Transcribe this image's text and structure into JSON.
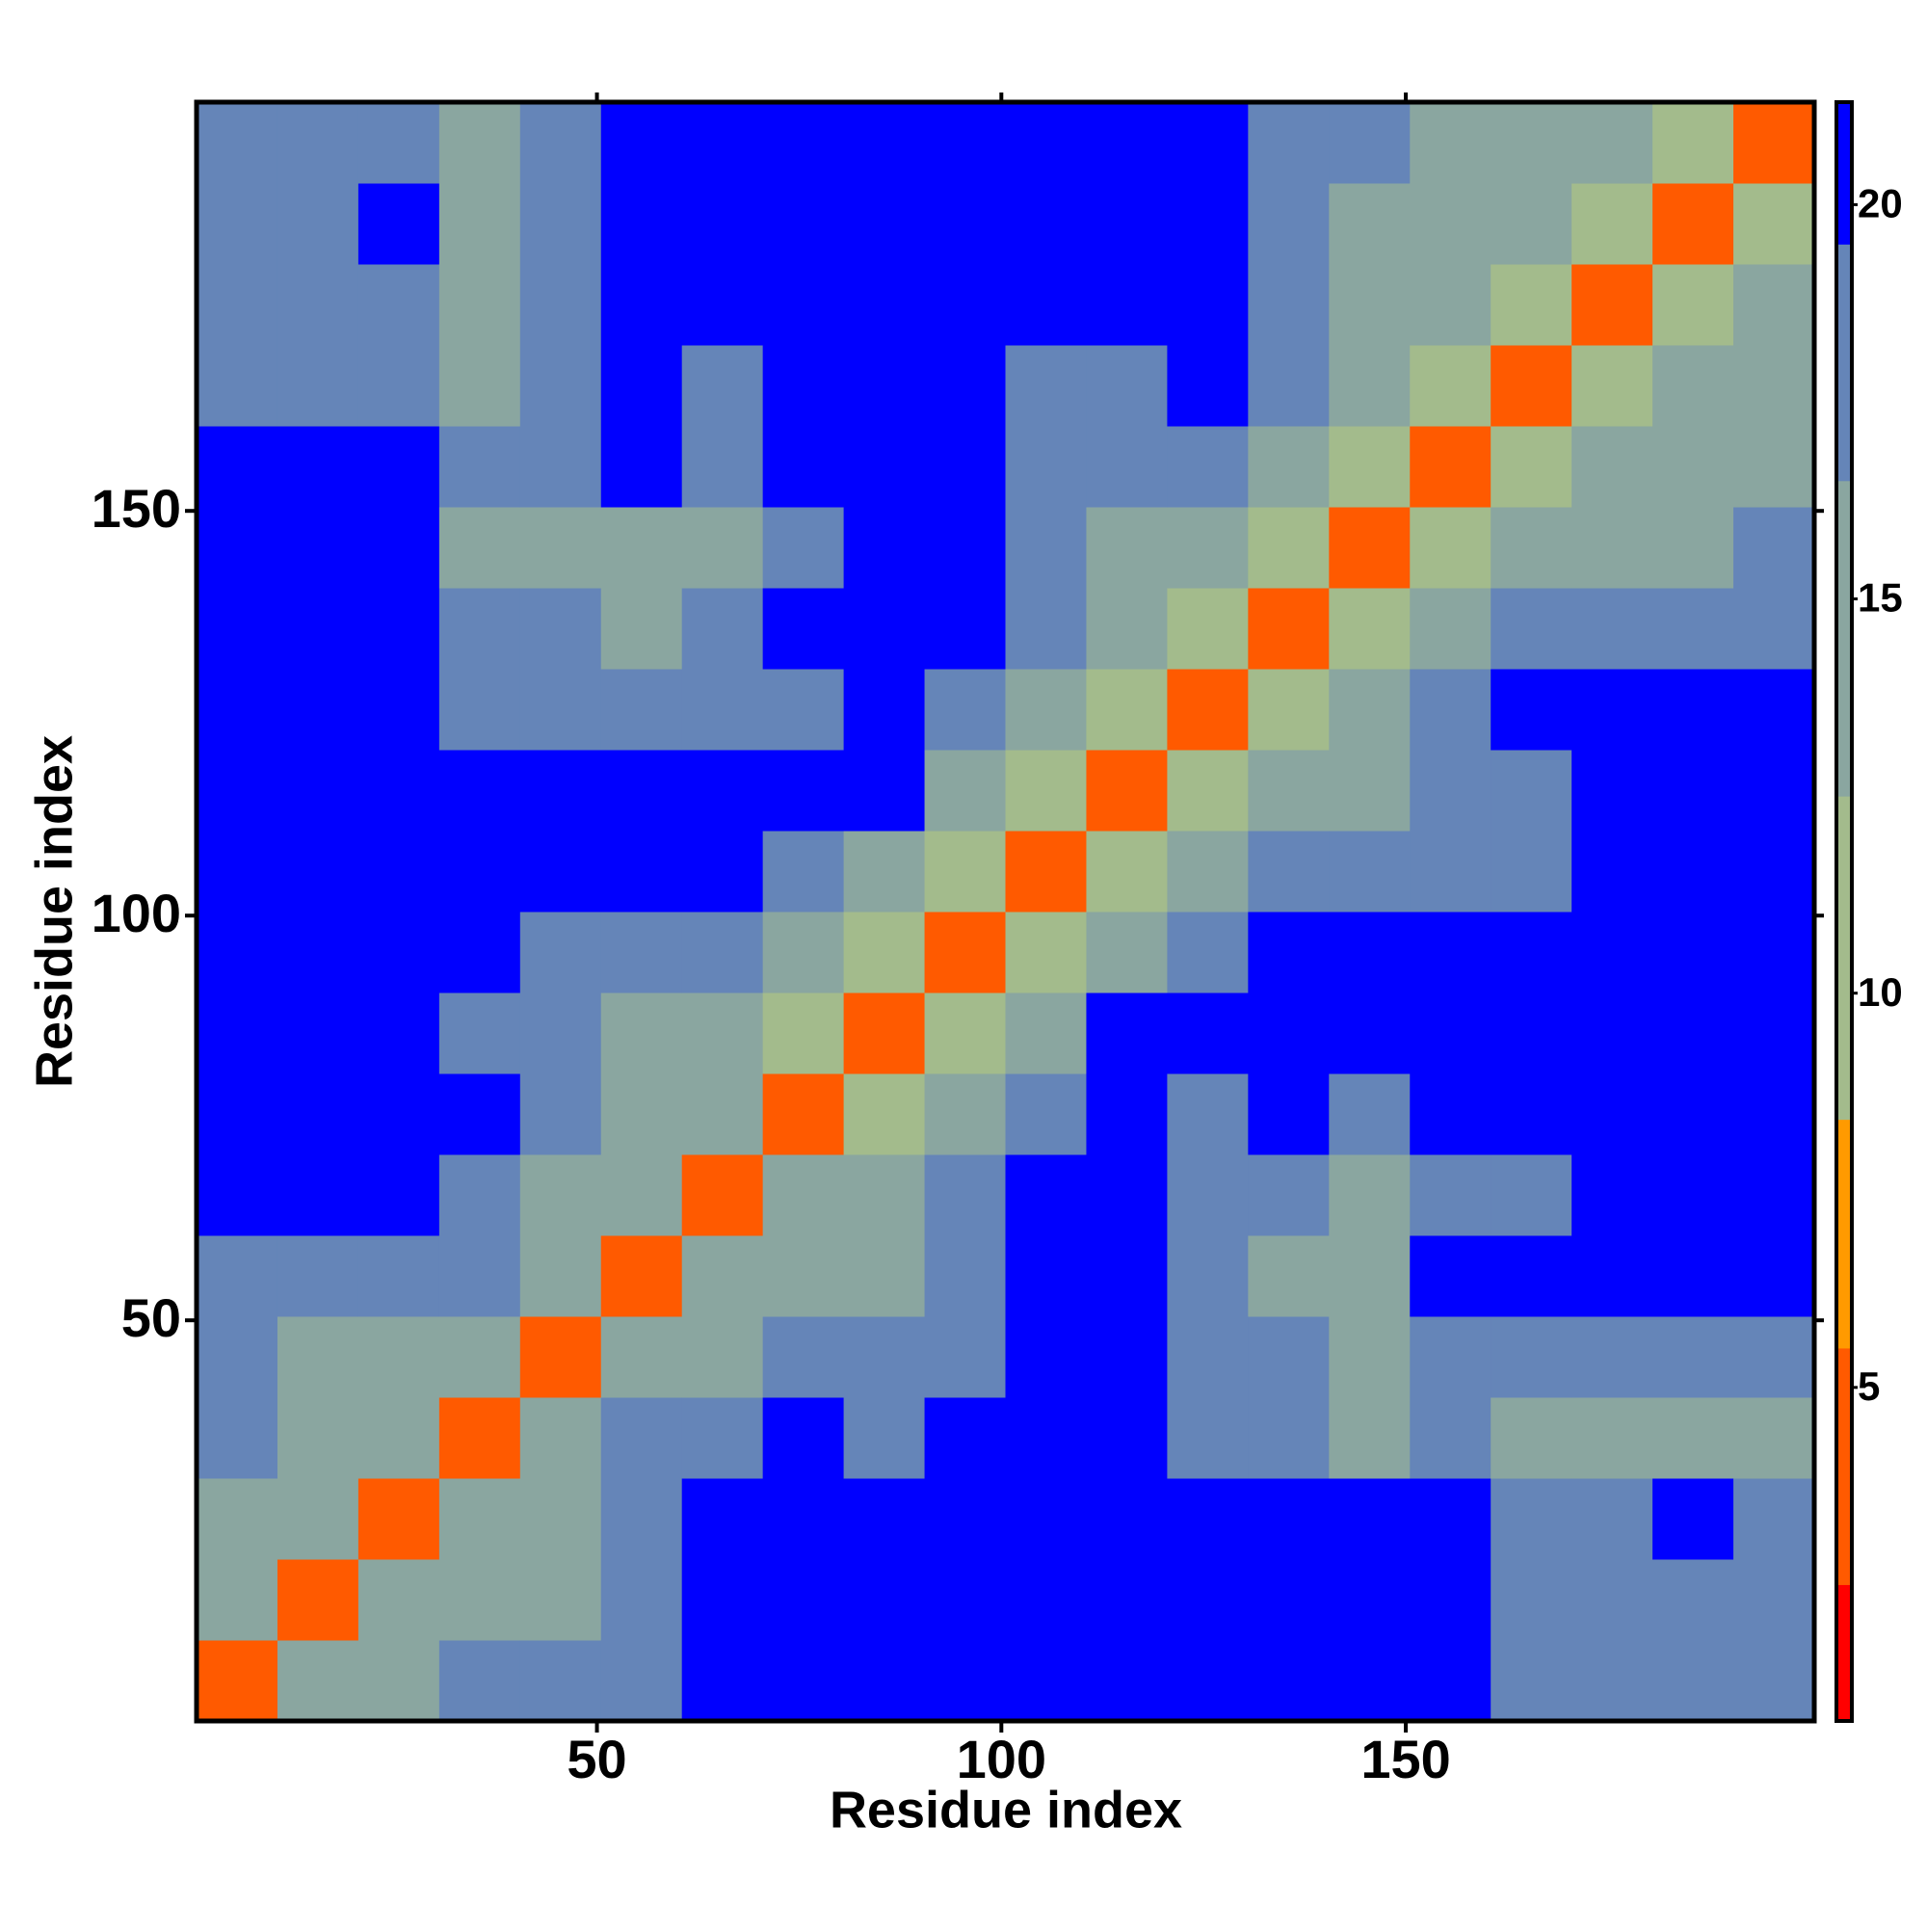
{
  "chart_data": {
    "type": "heatmap",
    "xlabel": "Residue index",
    "ylabel": "Residue index",
    "xlim": [
      0.5,
      200.5
    ],
    "ylim": [
      0.5,
      200.5
    ],
    "xticks": [
      50,
      100,
      150
    ],
    "yticks": [
      50,
      100,
      150
    ],
    "xbins": [
      0.5,
      10.5,
      20.5,
      30.5,
      40.5,
      50.5,
      60.5,
      70.5,
      80.5,
      90.5,
      100.5,
      110.5,
      120.5,
      130.5,
      140.5,
      150.5,
      160.5,
      170.5,
      180.5,
      190.5,
      200.5
    ],
    "ybins": [
      0.5,
      10.5,
      20.5,
      30.5,
      40.5,
      50.5,
      60.5,
      70.5,
      80.5,
      90.5,
      100.5,
      110.5,
      120.5,
      130.5,
      140.5,
      150.5,
      160.5,
      170.5,
      180.5,
      190.5,
      200.5
    ],
    "clim": [
      0.77,
      21.3
    ],
    "cticks": [
      5,
      10,
      15,
      20
    ],
    "color_thresholds": [
      2.5,
      5.5,
      8.4,
      12.5,
      16.5,
      19.5
    ],
    "colors": [
      "#ff0000",
      "#ff5a00",
      "#ff9a00",
      "#a3bb8c",
      "#8aa6a0",
      "#6585b8",
      "#0000ff"
    ],
    "values": [
      [
        5,
        13,
        16,
        17,
        17,
        19,
        21,
        21,
        21,
        21,
        21,
        21,
        21,
        21,
        21,
        21,
        19,
        18,
        18,
        17
      ],
      [
        13,
        5,
        13,
        16,
        16,
        18,
        21,
        21,
        21,
        21,
        21,
        21,
        21,
        21,
        20,
        21,
        19,
        18,
        19,
        17
      ],
      [
        16,
        13,
        5,
        13,
        15,
        18,
        21,
        21,
        21,
        21,
        21,
        21,
        21,
        21,
        21,
        21,
        17,
        19,
        20,
        19
      ],
      [
        17,
        16,
        13,
        5,
        13,
        17,
        19,
        21,
        19,
        20,
        21,
        21,
        19,
        17,
        15,
        17,
        15,
        16,
        16,
        16
      ],
      [
        17,
        16,
        15,
        13,
        5,
        13,
        16,
        18,
        17,
        18,
        20,
        20,
        19,
        19,
        16,
        19,
        19,
        18,
        19,
        17
      ],
      [
        19,
        18,
        18,
        17,
        13,
        5,
        13,
        15,
        15,
        17,
        21,
        20,
        19,
        16,
        13,
        20,
        20,
        20,
        21,
        21
      ],
      [
        21,
        21,
        21,
        19,
        16,
        13,
        5,
        13,
        14,
        18,
        21,
        21,
        18,
        17,
        15,
        18,
        19,
        20,
        21,
        21
      ],
      [
        21,
        21,
        21,
        21,
        18,
        15,
        13,
        5,
        12,
        14,
        18,
        21,
        19,
        20,
        18,
        21,
        21,
        21,
        21,
        21
      ],
      [
        21,
        21,
        21,
        19,
        17,
        15,
        14,
        12,
        5,
        12,
        15,
        20,
        20,
        21,
        21,
        21,
        21,
        21,
        21,
        21
      ],
      [
        21,
        21,
        21,
        20,
        18,
        17,
        18,
        14,
        12,
        5,
        12,
        14,
        17,
        20,
        21,
        21,
        21,
        21,
        21,
        21
      ],
      [
        21,
        21,
        21,
        21,
        20,
        21,
        21,
        18,
        15,
        12,
        5,
        12,
        15,
        19,
        18,
        18,
        19,
        21,
        21,
        21
      ],
      [
        21,
        21,
        21,
        21,
        20,
        20,
        21,
        21,
        20,
        14,
        12,
        5,
        12,
        14,
        15,
        17,
        18,
        21,
        21,
        21
      ],
      [
        21,
        21,
        21,
        19,
        19,
        19,
        18,
        19,
        20,
        17,
        15,
        12,
        5,
        12,
        14,
        19,
        21,
        21,
        21,
        21
      ],
      [
        21,
        21,
        21,
        17,
        19,
        16,
        17,
        20,
        21,
        20,
        19,
        14,
        12,
        5,
        12,
        15,
        17,
        18,
        18,
        19
      ],
      [
        21,
        20,
        21,
        15,
        16,
        13,
        15,
        18,
        21,
        21,
        18,
        15,
        14,
        12,
        5,
        12,
        14,
        15,
        16,
        17
      ],
      [
        21,
        21,
        21,
        17,
        19,
        20,
        18,
        21,
        21,
        21,
        18,
        17,
        19,
        15,
        12,
        5,
        12,
        14,
        15,
        16
      ],
      [
        19,
        19,
        17,
        15,
        19,
        20,
        19,
        21,
        21,
        21,
        19,
        18,
        21,
        17,
        14,
        12,
        5,
        12,
        13,
        15
      ],
      [
        18,
        18,
        19,
        16,
        18,
        20,
        20,
        21,
        21,
        21,
        21,
        21,
        21,
        18,
        15,
        14,
        12,
        5,
        12,
        14
      ],
      [
        18,
        19,
        20,
        16,
        19,
        21,
        21,
        21,
        21,
        21,
        21,
        21,
        21,
        18,
        16,
        15,
        13,
        12,
        5,
        12
      ],
      [
        17,
        17,
        19,
        16,
        17,
        21,
        21,
        21,
        21,
        21,
        21,
        21,
        21,
        19,
        17,
        16,
        15,
        14,
        12,
        5
      ]
    ]
  }
}
